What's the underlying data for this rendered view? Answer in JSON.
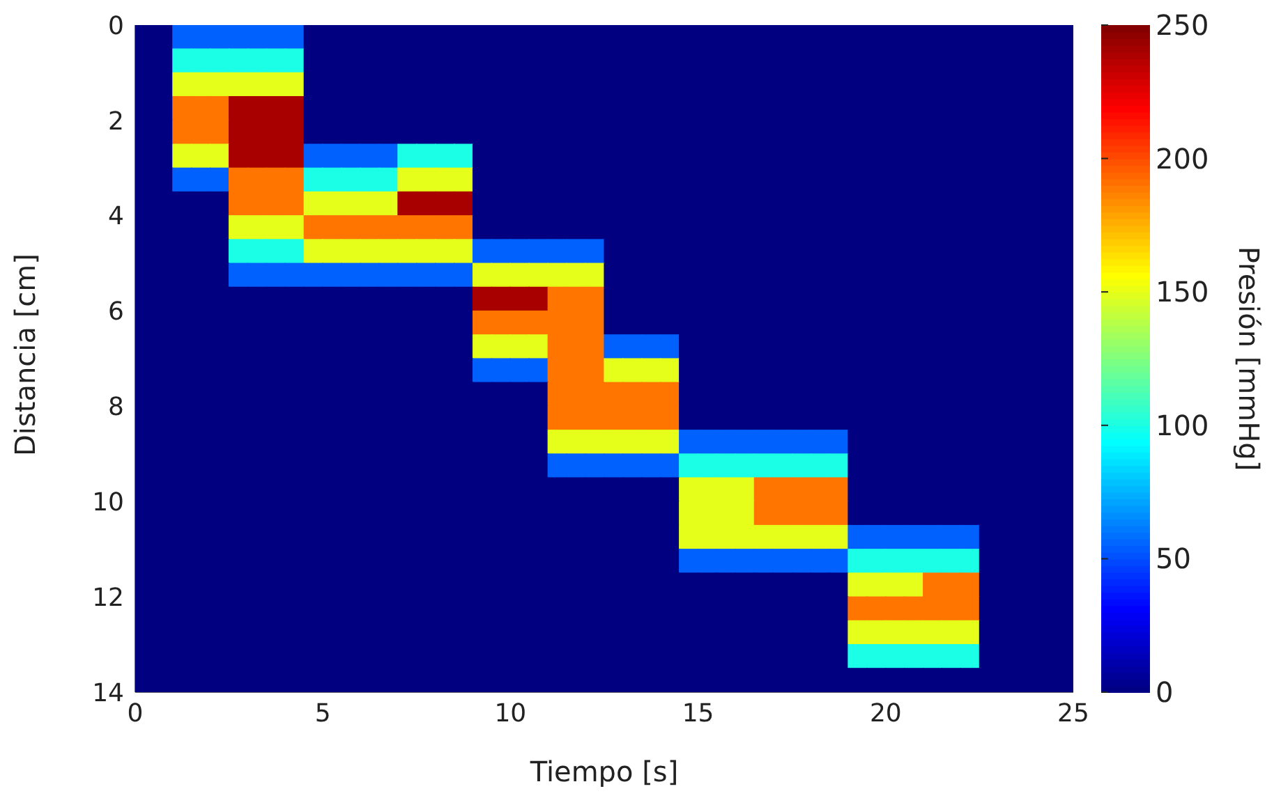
{
  "chart_data": {
    "type": "heatmap",
    "xlabel": "Tiempo [s]",
    "ylabel": "Distancia [cm]",
    "clabel": "Presión [mmHg]",
    "xlim": [
      0,
      25
    ],
    "xticks": [
      0,
      5,
      10,
      15,
      20,
      25
    ],
    "ylim": [
      14,
      0
    ],
    "yticks": [
      0,
      2,
      4,
      6,
      8,
      10,
      12,
      14
    ],
    "clim": [
      0,
      250
    ],
    "cticks": [
      0,
      50,
      100,
      150,
      200,
      250
    ],
    "cells": [
      [
        0,
        0,
        55,
        55,
        55,
        55,
        55,
        55,
        55,
        0,
        0,
        0,
        0,
        0,
        0,
        0,
        0,
        0,
        0,
        0,
        0,
        0,
        0,
        0,
        0,
        0,
        0,
        0,
        0,
        0,
        0,
        0,
        0,
        0,
        0,
        0,
        0,
        0,
        0,
        0,
        0,
        0,
        0,
        0,
        0,
        0,
        0,
        0,
        0,
        0
      ],
      [
        0,
        0,
        100,
        100,
        100,
        100,
        100,
        100,
        100,
        0,
        0,
        0,
        0,
        0,
        0,
        0,
        0,
        0,
        0,
        0,
        0,
        0,
        0,
        0,
        0,
        0,
        0,
        0,
        0,
        0,
        0,
        0,
        0,
        0,
        0,
        0,
        0,
        0,
        0,
        0,
        0,
        0,
        0,
        0,
        0,
        0,
        0,
        0,
        0,
        0
      ],
      [
        0,
        0,
        150,
        150,
        150,
        150,
        150,
        150,
        150,
        0,
        0,
        0,
        0,
        0,
        0,
        0,
        0,
        0,
        0,
        0,
        0,
        0,
        0,
        0,
        0,
        0,
        0,
        0,
        0,
        0,
        0,
        0,
        0,
        0,
        0,
        0,
        0,
        0,
        0,
        0,
        0,
        0,
        0,
        0,
        0,
        0,
        0,
        0,
        0,
        0
      ],
      [
        0,
        0,
        190,
        190,
        190,
        240,
        240,
        240,
        240,
        0,
        0,
        0,
        0,
        0,
        0,
        0,
        0,
        0,
        0,
        0,
        0,
        0,
        0,
        0,
        0,
        0,
        0,
        0,
        0,
        0,
        0,
        0,
        0,
        0,
        0,
        0,
        0,
        0,
        0,
        0,
        0,
        0,
        0,
        0,
        0,
        0,
        0,
        0,
        0,
        0
      ],
      [
        0,
        0,
        190,
        190,
        190,
        240,
        240,
        240,
        240,
        0,
        0,
        0,
        0,
        0,
        0,
        0,
        0,
        0,
        0,
        0,
        0,
        0,
        0,
        0,
        0,
        0,
        0,
        0,
        0,
        0,
        0,
        0,
        0,
        0,
        0,
        0,
        0,
        0,
        0,
        0,
        0,
        0,
        0,
        0,
        0,
        0,
        0,
        0,
        0,
        0
      ],
      [
        0,
        0,
        150,
        150,
        150,
        240,
        240,
        240,
        240,
        55,
        55,
        55,
        55,
        55,
        100,
        100,
        100,
        100,
        0,
        0,
        0,
        0,
        0,
        0,
        0,
        0,
        0,
        0,
        0,
        0,
        0,
        0,
        0,
        0,
        0,
        0,
        0,
        0,
        0,
        0,
        0,
        0,
        0,
        0,
        0,
        0,
        0,
        0,
        0,
        0
      ],
      [
        0,
        0,
        55,
        55,
        55,
        190,
        190,
        190,
        190,
        100,
        100,
        100,
        100,
        100,
        150,
        150,
        150,
        150,
        0,
        0,
        0,
        0,
        0,
        0,
        0,
        0,
        0,
        0,
        0,
        0,
        0,
        0,
        0,
        0,
        0,
        0,
        0,
        0,
        0,
        0,
        0,
        0,
        0,
        0,
        0,
        0,
        0,
        0,
        0,
        0
      ],
      [
        0,
        0,
        0,
        0,
        0,
        190,
        190,
        190,
        190,
        150,
        150,
        150,
        150,
        150,
        240,
        240,
        240,
        240,
        0,
        0,
        0,
        0,
        0,
        0,
        0,
        0,
        0,
        0,
        0,
        0,
        0,
        0,
        0,
        0,
        0,
        0,
        0,
        0,
        0,
        0,
        0,
        0,
        0,
        0,
        0,
        0,
        0,
        0,
        0,
        0
      ],
      [
        0,
        0,
        0,
        0,
        0,
        150,
        150,
        150,
        150,
        190,
        190,
        190,
        190,
        190,
        190,
        190,
        190,
        190,
        0,
        0,
        0,
        0,
        0,
        0,
        0,
        0,
        0,
        0,
        0,
        0,
        0,
        0,
        0,
        0,
        0,
        0,
        0,
        0,
        0,
        0,
        0,
        0,
        0,
        0,
        0,
        0,
        0,
        0,
        0,
        0
      ],
      [
        0,
        0,
        0,
        0,
        0,
        100,
        100,
        100,
        100,
        150,
        150,
        150,
        150,
        150,
        150,
        150,
        150,
        150,
        55,
        55,
        55,
        55,
        55,
        55,
        55,
        0,
        0,
        0,
        0,
        0,
        0,
        0,
        0,
        0,
        0,
        0,
        0,
        0,
        0,
        0,
        0,
        0,
        0,
        0,
        0,
        0,
        0,
        0,
        0,
        0
      ],
      [
        0,
        0,
        0,
        0,
        0,
        55,
        55,
        55,
        55,
        55,
        55,
        55,
        55,
        55,
        55,
        55,
        55,
        55,
        150,
        150,
        150,
        150,
        150,
        150,
        150,
        0,
        0,
        0,
        0,
        0,
        0,
        0,
        0,
        0,
        0,
        0,
        0,
        0,
        0,
        0,
        0,
        0,
        0,
        0,
        0,
        0,
        0,
        0,
        0,
        0
      ],
      [
        0,
        0,
        0,
        0,
        0,
        0,
        0,
        0,
        0,
        0,
        0,
        0,
        0,
        0,
        0,
        0,
        0,
        0,
        240,
        240,
        240,
        240,
        190,
        190,
        190,
        0,
        0,
        0,
        0,
        0,
        0,
        0,
        0,
        0,
        0,
        0,
        0,
        0,
        0,
        0,
        0,
        0,
        0,
        0,
        0,
        0,
        0,
        0,
        0,
        0
      ],
      [
        0,
        0,
        0,
        0,
        0,
        0,
        0,
        0,
        0,
        0,
        0,
        0,
        0,
        0,
        0,
        0,
        0,
        0,
        190,
        190,
        190,
        190,
        190,
        190,
        190,
        0,
        0,
        0,
        0,
        0,
        0,
        0,
        0,
        0,
        0,
        0,
        0,
        0,
        0,
        0,
        0,
        0,
        0,
        0,
        0,
        0,
        0,
        0,
        0,
        0
      ],
      [
        0,
        0,
        0,
        0,
        0,
        0,
        0,
        0,
        0,
        0,
        0,
        0,
        0,
        0,
        0,
        0,
        0,
        0,
        150,
        150,
        150,
        150,
        190,
        190,
        190,
        55,
        55,
        55,
        55,
        0,
        0,
        0,
        0,
        0,
        0,
        0,
        0,
        0,
        0,
        0,
        0,
        0,
        0,
        0,
        0,
        0,
        0,
        0,
        0,
        0
      ],
      [
        0,
        0,
        0,
        0,
        0,
        0,
        0,
        0,
        0,
        0,
        0,
        0,
        0,
        0,
        0,
        0,
        0,
        0,
        55,
        55,
        55,
        55,
        190,
        190,
        190,
        150,
        150,
        150,
        150,
        0,
        0,
        0,
        0,
        0,
        0,
        0,
        0,
        0,
        0,
        0,
        0,
        0,
        0,
        0,
        0,
        0,
        0,
        0,
        0,
        0
      ],
      [
        0,
        0,
        0,
        0,
        0,
        0,
        0,
        0,
        0,
        0,
        0,
        0,
        0,
        0,
        0,
        0,
        0,
        0,
        0,
        0,
        0,
        0,
        190,
        190,
        190,
        190,
        190,
        190,
        190,
        0,
        0,
        0,
        0,
        0,
        0,
        0,
        0,
        0,
        0,
        0,
        0,
        0,
        0,
        0,
        0,
        0,
        0,
        0,
        0,
        0
      ],
      [
        0,
        0,
        0,
        0,
        0,
        0,
        0,
        0,
        0,
        0,
        0,
        0,
        0,
        0,
        0,
        0,
        0,
        0,
        0,
        0,
        0,
        0,
        190,
        190,
        190,
        190,
        190,
        190,
        190,
        0,
        0,
        0,
        0,
        0,
        0,
        0,
        0,
        0,
        0,
        0,
        0,
        0,
        0,
        0,
        0,
        0,
        0,
        0,
        0,
        0
      ],
      [
        0,
        0,
        0,
        0,
        0,
        0,
        0,
        0,
        0,
        0,
        0,
        0,
        0,
        0,
        0,
        0,
        0,
        0,
        0,
        0,
        0,
        0,
        150,
        150,
        150,
        150,
        150,
        150,
        150,
        55,
        55,
        55,
        55,
        55,
        55,
        55,
        55,
        55,
        0,
        0,
        0,
        0,
        0,
        0,
        0,
        0,
        0,
        0,
        0,
        0
      ],
      [
        0,
        0,
        0,
        0,
        0,
        0,
        0,
        0,
        0,
        0,
        0,
        0,
        0,
        0,
        0,
        0,
        0,
        0,
        0,
        0,
        0,
        0,
        55,
        55,
        55,
        55,
        55,
        55,
        55,
        100,
        100,
        100,
        100,
        100,
        100,
        100,
        100,
        100,
        0,
        0,
        0,
        0,
        0,
        0,
        0,
        0,
        0,
        0,
        0,
        0
      ],
      [
        0,
        0,
        0,
        0,
        0,
        0,
        0,
        0,
        0,
        0,
        0,
        0,
        0,
        0,
        0,
        0,
        0,
        0,
        0,
        0,
        0,
        0,
        0,
        0,
        0,
        0,
        0,
        0,
        0,
        150,
        150,
        150,
        150,
        190,
        190,
        190,
        190,
        190,
        0,
        0,
        0,
        0,
        0,
        0,
        0,
        0,
        0,
        0,
        0,
        0
      ],
      [
        0,
        0,
        0,
        0,
        0,
        0,
        0,
        0,
        0,
        0,
        0,
        0,
        0,
        0,
        0,
        0,
        0,
        0,
        0,
        0,
        0,
        0,
        0,
        0,
        0,
        0,
        0,
        0,
        0,
        150,
        150,
        150,
        150,
        190,
        190,
        190,
        190,
        190,
        0,
        0,
        0,
        0,
        0,
        0,
        0,
        0,
        0,
        0,
        0,
        0
      ],
      [
        0,
        0,
        0,
        0,
        0,
        0,
        0,
        0,
        0,
        0,
        0,
        0,
        0,
        0,
        0,
        0,
        0,
        0,
        0,
        0,
        0,
        0,
        0,
        0,
        0,
        0,
        0,
        0,
        0,
        150,
        150,
        150,
        150,
        150,
        150,
        150,
        150,
        150,
        55,
        55,
        55,
        55,
        55,
        55,
        55,
        0,
        0,
        0,
        0,
        0
      ],
      [
        0,
        0,
        0,
        0,
        0,
        0,
        0,
        0,
        0,
        0,
        0,
        0,
        0,
        0,
        0,
        0,
        0,
        0,
        0,
        0,
        0,
        0,
        0,
        0,
        0,
        0,
        0,
        0,
        0,
        55,
        55,
        55,
        55,
        55,
        55,
        55,
        55,
        55,
        100,
        100,
        100,
        100,
        100,
        100,
        100,
        0,
        0,
        0,
        0,
        0
      ],
      [
        0,
        0,
        0,
        0,
        0,
        0,
        0,
        0,
        0,
        0,
        0,
        0,
        0,
        0,
        0,
        0,
        0,
        0,
        0,
        0,
        0,
        0,
        0,
        0,
        0,
        0,
        0,
        0,
        0,
        0,
        0,
        0,
        0,
        0,
        0,
        0,
        0,
        0,
        150,
        150,
        150,
        150,
        190,
        190,
        190,
        0,
        0,
        0,
        0,
        0
      ],
      [
        0,
        0,
        0,
        0,
        0,
        0,
        0,
        0,
        0,
        0,
        0,
        0,
        0,
        0,
        0,
        0,
        0,
        0,
        0,
        0,
        0,
        0,
        0,
        0,
        0,
        0,
        0,
        0,
        0,
        0,
        0,
        0,
        0,
        0,
        0,
        0,
        0,
        0,
        190,
        190,
        190,
        190,
        190,
        190,
        190,
        0,
        0,
        0,
        0,
        0
      ],
      [
        0,
        0,
        0,
        0,
        0,
        0,
        0,
        0,
        0,
        0,
        0,
        0,
        0,
        0,
        0,
        0,
        0,
        0,
        0,
        0,
        0,
        0,
        0,
        0,
        0,
        0,
        0,
        0,
        0,
        0,
        0,
        0,
        0,
        0,
        0,
        0,
        0,
        0,
        150,
        150,
        150,
        150,
        150,
        150,
        150,
        0,
        0,
        0,
        0,
        0
      ],
      [
        0,
        0,
        0,
        0,
        0,
        0,
        0,
        0,
        0,
        0,
        0,
        0,
        0,
        0,
        0,
        0,
        0,
        0,
        0,
        0,
        0,
        0,
        0,
        0,
        0,
        0,
        0,
        0,
        0,
        0,
        0,
        0,
        0,
        0,
        0,
        0,
        0,
        0,
        100,
        100,
        100,
        100,
        100,
        100,
        100,
        0,
        0,
        0,
        0,
        0
      ],
      [
        0,
        0,
        0,
        0,
        0,
        0,
        0,
        0,
        0,
        0,
        0,
        0,
        0,
        0,
        0,
        0,
        0,
        0,
        0,
        0,
        0,
        0,
        0,
        0,
        0,
        0,
        0,
        0,
        0,
        0,
        0,
        0,
        0,
        0,
        0,
        0,
        0,
        0,
        0,
        0,
        0,
        0,
        0,
        0,
        0,
        0,
        0,
        0,
        0,
        0
      ]
    ]
  }
}
